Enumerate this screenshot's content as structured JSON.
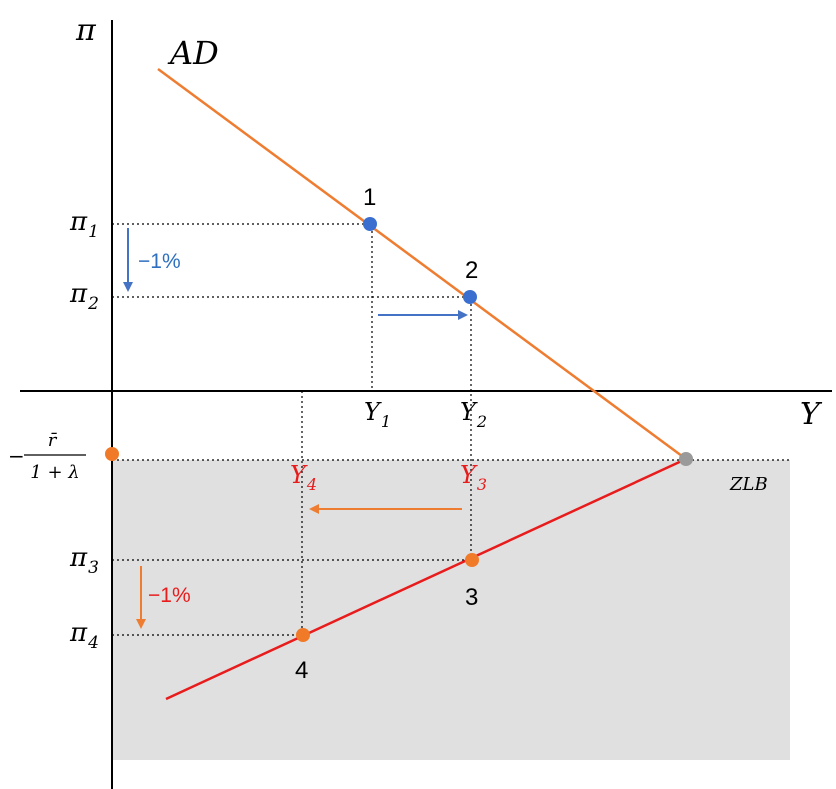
{
  "axes": {
    "y_axis_label": "π",
    "x_axis_label": "Y"
  },
  "curves": {
    "ad_label": "AD",
    "zlb_label": "ZLB"
  },
  "zlb_level": {
    "prefix": "−",
    "numerator": "r̄",
    "denominator": "1 + λ"
  },
  "inflation_labels": {
    "pi1": {
      "base": "π",
      "sub": "1"
    },
    "pi2": {
      "base": "π",
      "sub": "2"
    },
    "pi3": {
      "base": "π",
      "sub": "3"
    },
    "pi4": {
      "base": "π",
      "sub": "4"
    }
  },
  "output_labels": {
    "y1": {
      "base": "Y",
      "sub": "1"
    },
    "y2": {
      "base": "Y",
      "sub": "2"
    },
    "y3": {
      "base": "Y",
      "sub": "3"
    },
    "y4": {
      "base": "Y",
      "sub": "4"
    }
  },
  "points": {
    "p1": "1",
    "p2": "2",
    "p3": "3",
    "p4": "4"
  },
  "changes": {
    "upper_drop": "−1%",
    "lower_drop": "−1%"
  },
  "colors": {
    "ad_line": "#ee7d31",
    "zlb_line": "#e81c1c",
    "blue_point": "#3a6fd0",
    "orange_point": "#f07a28",
    "gray_point": "#9a9a9a",
    "shade": "#e0e0e0",
    "red_text": "#e81c1c",
    "blue_text": "#2f6fbf",
    "blue_arrow": "#4472c4",
    "orange_arrow": "#ee7d31"
  }
}
